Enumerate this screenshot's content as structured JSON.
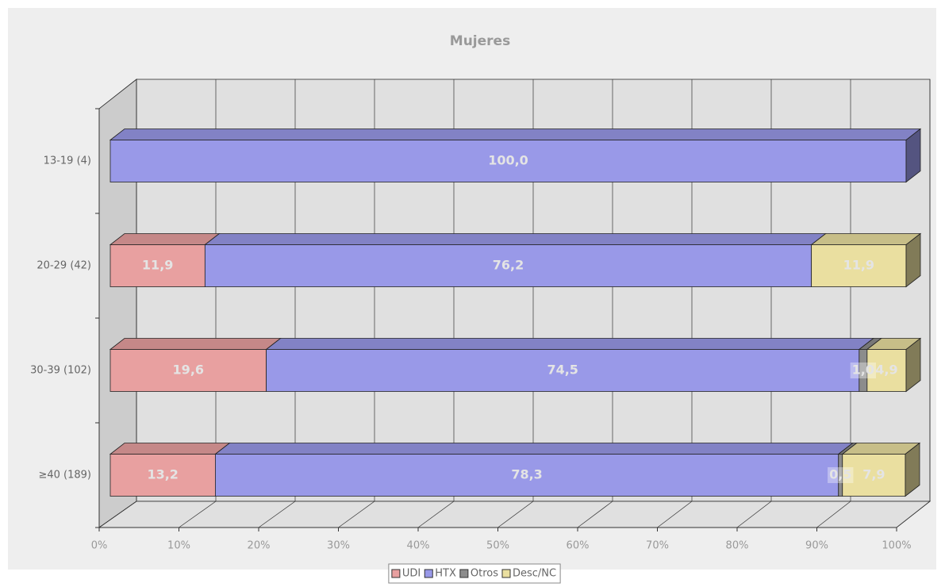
{
  "chart_data": {
    "type": "stacked_bar_3d",
    "orientation": "horizontal",
    "title": "Mujeres",
    "categories": [
      "13-19 (4)",
      "20-29 (42)",
      "30-39 (102)",
      "≥40 (189)"
    ],
    "series": [
      {
        "name": "UDI",
        "color": "#e8a0a0",
        "values": [
          0,
          11.9,
          19.6,
          13.2
        ],
        "value_labels": [
          null,
          "11,9",
          "19,6",
          "13,2"
        ]
      },
      {
        "name": "HTX",
        "color": "#9999e8",
        "values": [
          100,
          76.2,
          74.5,
          78.3
        ],
        "value_labels": [
          "100,0",
          "76,2",
          "74,5",
          "78,3"
        ]
      },
      {
        "name": "Otros",
        "color": "#8c8c8c",
        "values": [
          0,
          0,
          1.0,
          0.5
        ],
        "value_labels": [
          null,
          null,
          "1,0",
          "0,5"
        ]
      },
      {
        "name": "Desc/NC",
        "color": "#eadfa0",
        "values": [
          0,
          11.9,
          4.9,
          7.9
        ],
        "value_labels": [
          null,
          "11,9",
          "4,9",
          "7,9"
        ]
      }
    ],
    "xlim": [
      0,
      100
    ],
    "xticks": [
      {
        "value": 0,
        "label": "0%"
      },
      {
        "value": 10,
        "label": "10%"
      },
      {
        "value": 20,
        "label": "20%"
      },
      {
        "value": 30,
        "label": "30%"
      },
      {
        "value": 40,
        "label": "40%"
      },
      {
        "value": 50,
        "label": "50%"
      },
      {
        "value": 60,
        "label": "60%"
      },
      {
        "value": 70,
        "label": "70%"
      },
      {
        "value": 80,
        "label": "80%"
      },
      {
        "value": 90,
        "label": "90%"
      },
      {
        "value": 100,
        "label": "100%"
      }
    ],
    "grid": true,
    "legend": "bottom"
  }
}
